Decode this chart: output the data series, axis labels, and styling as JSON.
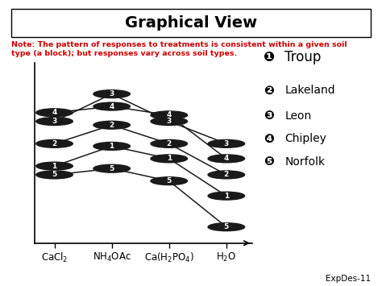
{
  "title": "Graphical View",
  "note_line1": "Note: The pattern of responses to treatments is consistent within a given soil",
  "note_line2": "type (a block); but responses vary across soil types.",
  "x_labels": [
    "CaCl$_2$",
    "NH$_4$OAc",
    "Ca(H$_2$PO$_4$)",
    "H$_2$O"
  ],
  "x_positions": [
    0,
    1,
    2,
    3
  ],
  "legend_labels": [
    "Troup",
    "Lakeland",
    "Leon",
    "Chipley",
    "Norfolk"
  ],
  "legend_symbols": [
    "❶",
    "❷",
    "❸",
    "❹",
    "❺"
  ],
  "series_order": [
    "Troup",
    "Lakeland",
    "Leon",
    "Chipley",
    "Norfolk"
  ],
  "series": {
    "Troup": [
      5.2,
      6.8,
      5.8,
      2.8
    ],
    "Lakeland": [
      7.0,
      8.5,
      7.0,
      4.5
    ],
    "Leon": [
      8.8,
      11.0,
      8.8,
      7.0
    ],
    "Chipley": [
      9.5,
      10.0,
      9.3,
      5.8
    ],
    "Norfolk": [
      4.5,
      5.0,
      4.0,
      0.3
    ]
  },
  "marker_numbers": {
    "Troup": "1",
    "Lakeland": "2",
    "Leon": "3",
    "Chipley": "4",
    "Norfolk": "5"
  },
  "line_color": "#1a1a1a",
  "marker_face_color": "#1a1a1a",
  "marker_text_color": "#ffffff",
  "background_color": "#ffffff",
  "note_color": "#cc0000",
  "footer": "ExpDes-11",
  "ylim": [
    -1.0,
    13.5
  ],
  "xlim": [
    -0.35,
    3.45
  ]
}
